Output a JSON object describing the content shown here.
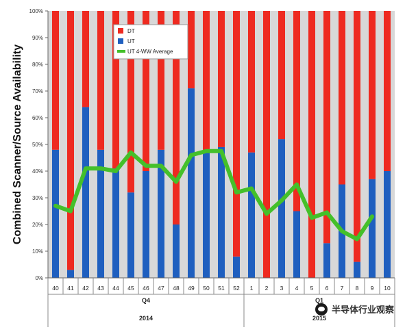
{
  "chart_data": {
    "type": "bar",
    "stacked": true,
    "ylabel": "Combined Scanner/Source Availability",
    "ylim": [
      0,
      100
    ],
    "yticks": [
      0,
      10,
      20,
      30,
      40,
      50,
      60,
      70,
      80,
      90,
      100
    ],
    "ytick_format": "percent",
    "categories": [
      "40",
      "41",
      "42",
      "43",
      "44",
      "45",
      "46",
      "47",
      "48",
      "49",
      "50",
      "51",
      "52",
      "1",
      "2",
      "3",
      "4",
      "5",
      "6",
      "7",
      "8",
      "9",
      "10"
    ],
    "groups": [
      {
        "quarter": "Q4",
        "year": "2014",
        "categories": [
          "40",
          "41",
          "42",
          "43",
          "44",
          "45",
          "46",
          "47",
          "48",
          "49",
          "50",
          "51",
          "52"
        ]
      },
      {
        "quarter": "Q1",
        "year": "2015",
        "categories": [
          "1",
          "2",
          "3",
          "4",
          "5",
          "6",
          "7",
          "8",
          "9",
          "10"
        ]
      }
    ],
    "series": [
      {
        "name": "UT",
        "kind": "bar",
        "color": "#1f5fbf",
        "values": [
          48,
          3,
          64,
          48,
          41,
          32,
          40,
          48,
          20,
          71,
          48,
          49,
          8,
          47,
          0,
          52,
          25,
          0,
          13,
          35,
          6,
          37,
          40
        ]
      },
      {
        "name": "DT",
        "kind": "bar",
        "color": "#ee2a20",
        "values": [
          52,
          97,
          36,
          52,
          59,
          68,
          60,
          52,
          80,
          29,
          52,
          51,
          92,
          53,
          100,
          48,
          75,
          100,
          87,
          65,
          94,
          63,
          60
        ]
      },
      {
        "name": "UT 4-WW Average",
        "kind": "line",
        "color": "#44c02a",
        "values": [
          27,
          25,
          41,
          41,
          40,
          47,
          42,
          42,
          36,
          46,
          47.5,
          47.5,
          32,
          33.5,
          24,
          29,
          35,
          22.5,
          24.5,
          17.5,
          14.5,
          23,
          null
        ]
      }
    ],
    "legend": {
      "placement": "top-left",
      "order": [
        "DT",
        "UT",
        "UT 4-WW Average"
      ]
    },
    "grid": false,
    "background": "#d8d8d8"
  },
  "watermark": {
    "text": "半导体行业观察",
    "icon": "wechat-icon"
  }
}
